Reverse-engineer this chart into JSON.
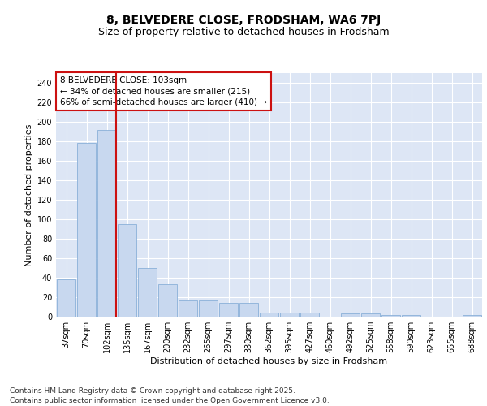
{
  "title": "8, BELVEDERE CLOSE, FRODSHAM, WA6 7PJ",
  "subtitle": "Size of property relative to detached houses in Frodsham",
  "xlabel": "Distribution of detached houses by size in Frodsham",
  "ylabel": "Number of detached properties",
  "categories": [
    "37sqm",
    "70sqm",
    "102sqm",
    "135sqm",
    "167sqm",
    "200sqm",
    "232sqm",
    "265sqm",
    "297sqm",
    "330sqm",
    "362sqm",
    "395sqm",
    "427sqm",
    "460sqm",
    "492sqm",
    "525sqm",
    "558sqm",
    "590sqm",
    "623sqm",
    "655sqm",
    "688sqm"
  ],
  "values": [
    38,
    178,
    192,
    95,
    50,
    33,
    17,
    17,
    14,
    14,
    4,
    4,
    4,
    0,
    3,
    3,
    2,
    2,
    0,
    0,
    2
  ],
  "bar_color": "#c8d8ef",
  "bar_edge_color": "#8ab0d8",
  "vline_x_index": 2,
  "vline_color": "#cc1111",
  "annotation_text": "8 BELVEDERE CLOSE: 103sqm\n← 34% of detached houses are smaller (215)\n66% of semi-detached houses are larger (410) →",
  "annotation_box_color": "#ffffff",
  "annotation_box_edge_color": "#cc1111",
  "ylim": [
    0,
    250
  ],
  "yticks": [
    0,
    20,
    40,
    60,
    80,
    100,
    120,
    140,
    160,
    180,
    200,
    220,
    240
  ],
  "ax_background_color": "#dde6f5",
  "grid_color": "#ffffff",
  "footer": "Contains HM Land Registry data © Crown copyright and database right 2025.\nContains public sector information licensed under the Open Government Licence v3.0.",
  "title_fontsize": 10,
  "subtitle_fontsize": 9,
  "axis_label_fontsize": 8,
  "tick_fontsize": 7,
  "annotation_fontsize": 7.5,
  "footer_fontsize": 6.5
}
